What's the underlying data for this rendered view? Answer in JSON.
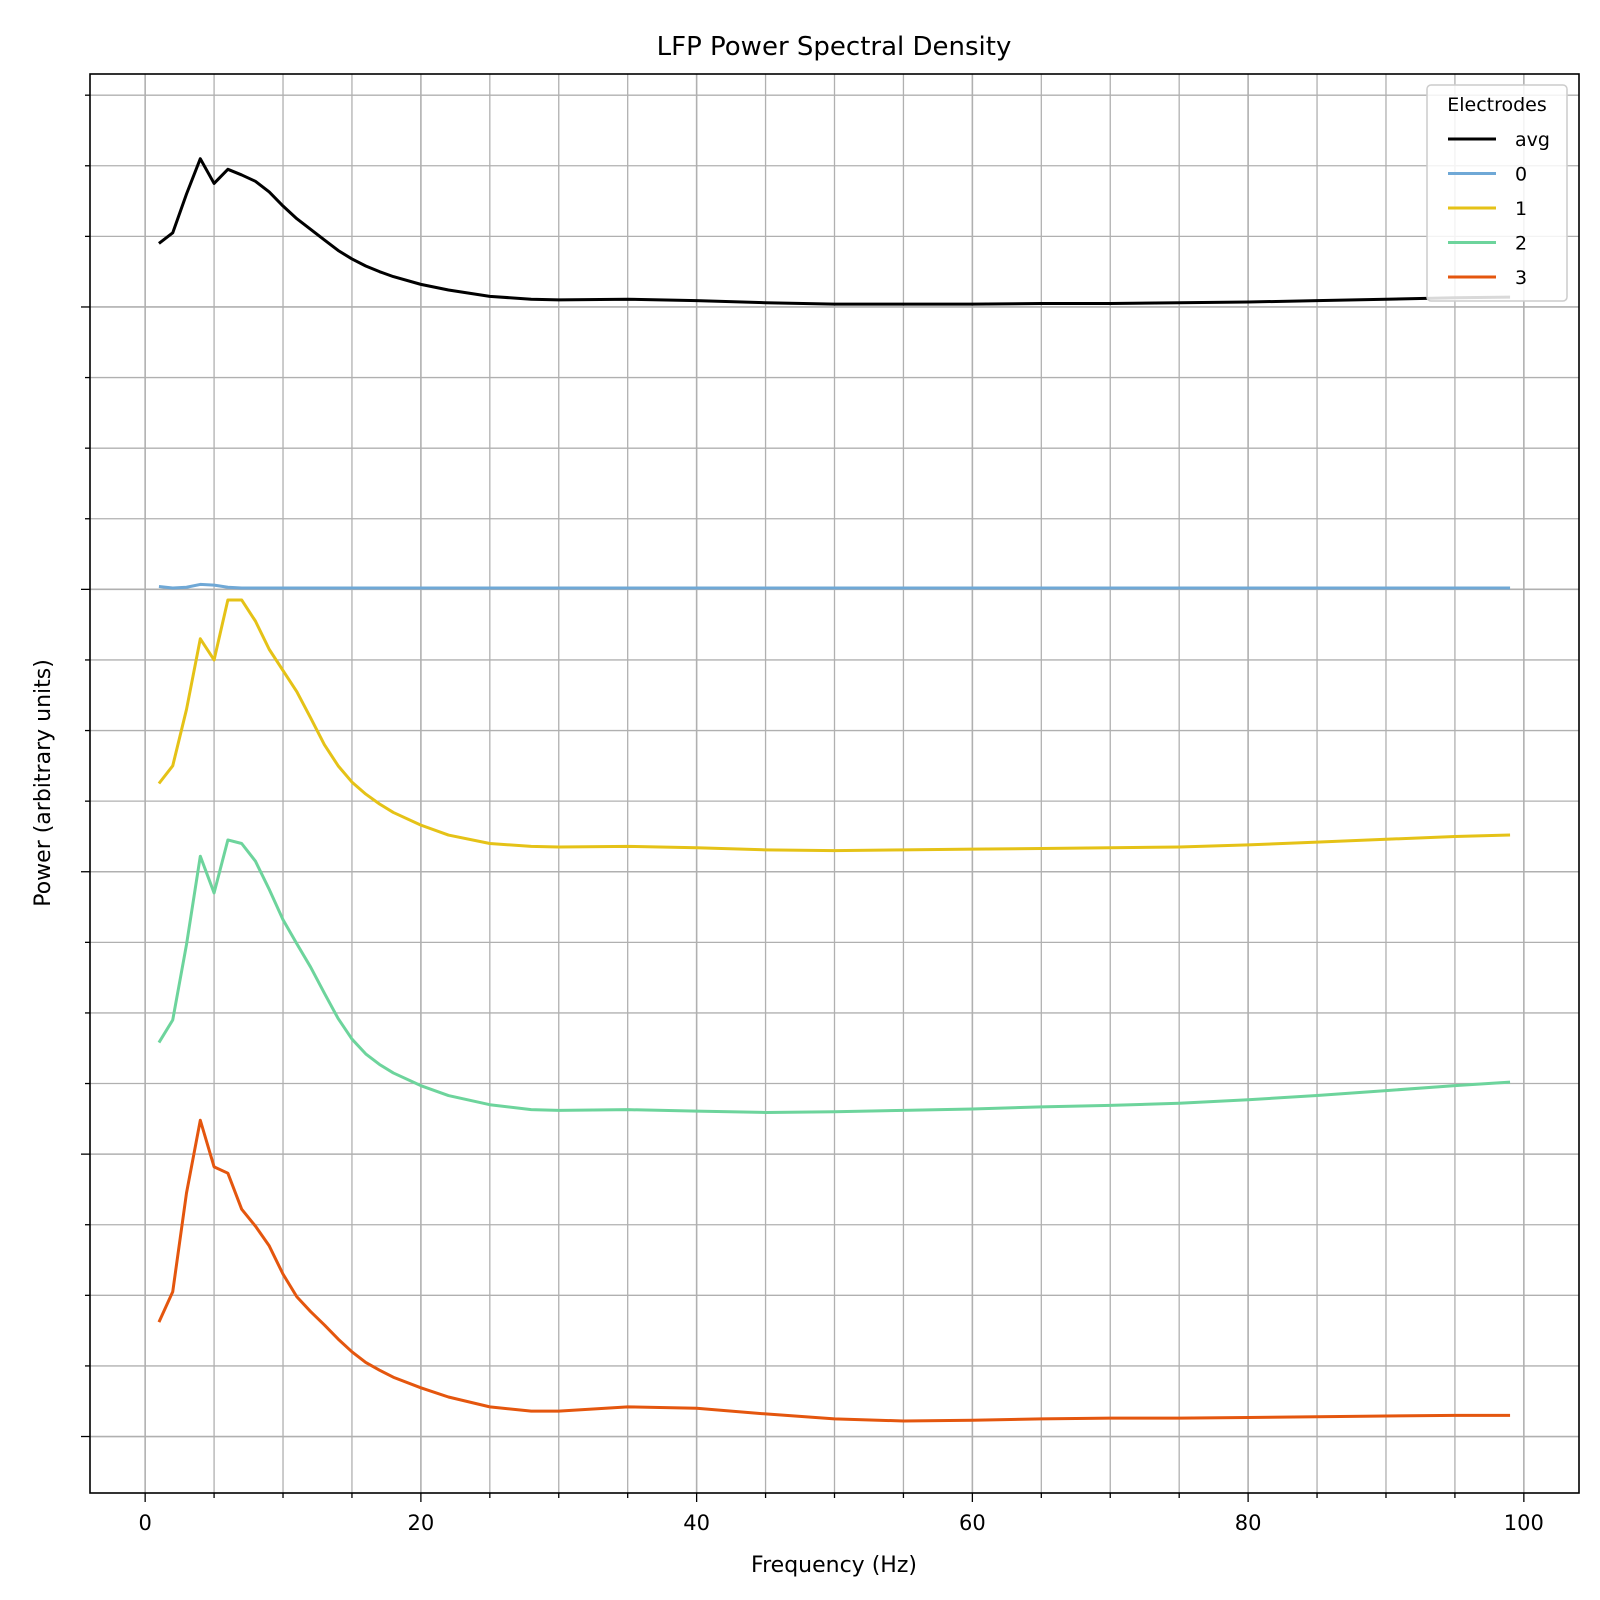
{
  "chart_data": {
    "type": "line",
    "title": "LFP Power Spectral Density",
    "xlabel": "Frequency (Hz)",
    "ylabel": "Power (arbitrary units)",
    "xlim": [
      -4,
      104
    ],
    "ylim": [
      -0.8,
      19.3
    ],
    "x_major_ticks": [
      0,
      20,
      40,
      60,
      80,
      100
    ],
    "x_tick_labels": [
      "0",
      "20",
      "40",
      "60",
      "80",
      "100"
    ],
    "x_minor_step": 5,
    "y_major_ticks": [
      0,
      4,
      8,
      12,
      16
    ],
    "y_minor_step": 1,
    "y_tick_labels_shown": false,
    "grid": true,
    "legend": {
      "title": "Electrodes",
      "position": "top-right"
    },
    "x": [
      1,
      2,
      3,
      4,
      5,
      6,
      7,
      8,
      9,
      10,
      11,
      12,
      13,
      14,
      15,
      16,
      17,
      18,
      20,
      22,
      25,
      28,
      30,
      35,
      40,
      45,
      50,
      55,
      60,
      65,
      70,
      75,
      80,
      85,
      90,
      95,
      99
    ],
    "series": [
      {
        "name": "avg",
        "color": "#000000",
        "values": [
          16.9,
          17.05,
          17.6,
          18.1,
          17.75,
          17.95,
          17.87,
          17.78,
          17.63,
          17.43,
          17.25,
          17.1,
          16.95,
          16.8,
          16.68,
          16.58,
          16.5,
          16.43,
          16.32,
          16.24,
          16.15,
          16.11,
          16.1,
          16.11,
          16.09,
          16.06,
          16.04,
          16.04,
          16.04,
          16.05,
          16.05,
          16.06,
          16.07,
          16.09,
          16.11,
          16.13,
          16.14
        ]
      },
      {
        "name": "0",
        "color": "#6fa8d6",
        "values": [
          12.04,
          12.02,
          12.03,
          12.07,
          12.06,
          12.03,
          12.02,
          12.02,
          12.02,
          12.02,
          12.02,
          12.02,
          12.02,
          12.02,
          12.02,
          12.02,
          12.02,
          12.02,
          12.02,
          12.02,
          12.02,
          12.02,
          12.02,
          12.02,
          12.02,
          12.02,
          12.02,
          12.02,
          12.02,
          12.02,
          12.02,
          12.02,
          12.02,
          12.02,
          12.02,
          12.02,
          12.02
        ]
      },
      {
        "name": "1",
        "color": "#e5c217",
        "values": [
          9.25,
          9.5,
          10.3,
          11.3,
          11.0,
          11.85,
          11.85,
          11.55,
          11.15,
          10.85,
          10.55,
          10.18,
          9.8,
          9.5,
          9.27,
          9.1,
          8.96,
          8.84,
          8.66,
          8.52,
          8.4,
          8.36,
          8.35,
          8.36,
          8.34,
          8.31,
          8.3,
          8.31,
          8.32,
          8.33,
          8.34,
          8.35,
          8.38,
          8.42,
          8.46,
          8.5,
          8.52
        ]
      },
      {
        "name": "2",
        "color": "#6dd49c",
        "values": [
          5.58,
          5.9,
          6.97,
          8.22,
          7.7,
          8.45,
          8.4,
          8.15,
          7.75,
          7.32,
          6.98,
          6.65,
          6.28,
          5.92,
          5.63,
          5.42,
          5.27,
          5.15,
          4.97,
          4.83,
          4.7,
          4.63,
          4.62,
          4.63,
          4.61,
          4.59,
          4.6,
          4.62,
          4.64,
          4.67,
          4.69,
          4.72,
          4.77,
          4.83,
          4.9,
          4.97,
          5.02
        ]
      },
      {
        "name": "3",
        "color": "#e4560e",
        "values": [
          1.62,
          2.05,
          3.45,
          4.48,
          3.82,
          3.73,
          3.22,
          2.98,
          2.7,
          2.3,
          1.98,
          1.77,
          1.58,
          1.38,
          1.2,
          1.05,
          0.94,
          0.84,
          0.69,
          0.56,
          0.42,
          0.36,
          0.36,
          0.42,
          0.4,
          0.32,
          0.25,
          0.22,
          0.23,
          0.25,
          0.26,
          0.26,
          0.27,
          0.28,
          0.29,
          0.3,
          0.3
        ]
      }
    ]
  }
}
